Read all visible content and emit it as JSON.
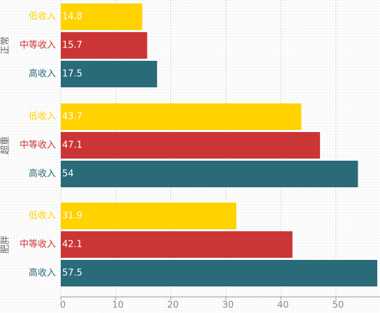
{
  "chart_data": {
    "type": "bar",
    "orientation": "horizontal",
    "categories": [
      "正常",
      "超重",
      "肥胖"
    ],
    "series": [
      {
        "name": "低收入",
        "color": "#ffd200",
        "values": [
          14.8,
          43.7,
          31.9
        ]
      },
      {
        "name": "中等收入",
        "color": "#cc3535",
        "values": [
          15.7,
          47.1,
          42.1
        ]
      },
      {
        "name": "高收入",
        "color": "#2a6b7a",
        "values": [
          17.5,
          54,
          57.5
        ]
      }
    ],
    "xlim": [
      0,
      58
    ],
    "xticks": [
      0,
      10,
      20,
      30,
      40,
      50
    ],
    "grid": true
  }
}
